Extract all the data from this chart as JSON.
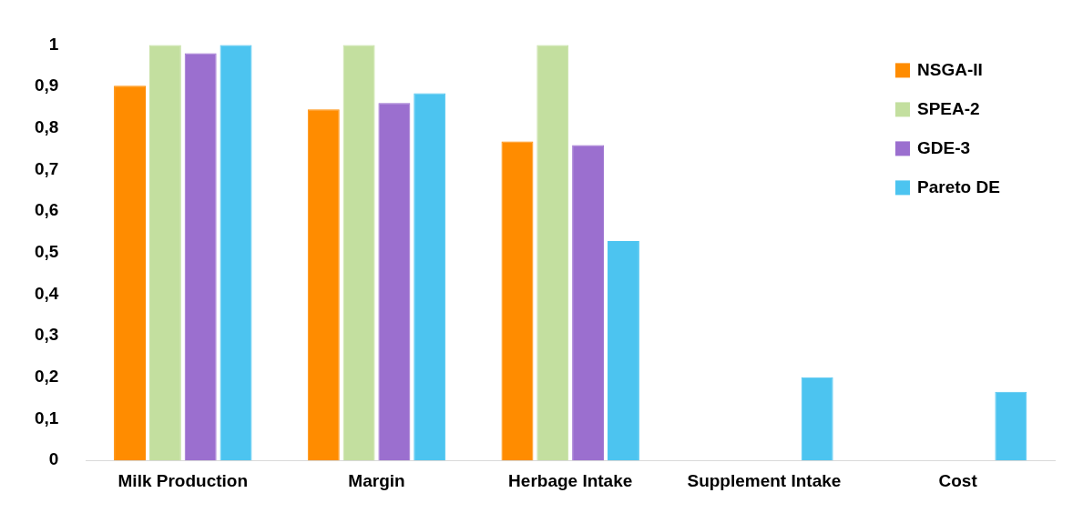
{
  "chart_data": {
    "type": "bar",
    "categories": [
      "Milk Production",
      "Margin",
      "Herbage Intake",
      "Supplement Intake",
      "Cost"
    ],
    "series": [
      {
        "name": "NSGA-II",
        "color": "#ff8c00",
        "values": [
          0.902,
          0.845,
          0.768,
          0,
          0
        ]
      },
      {
        "name": "SPEA-2",
        "color": "#c3df9f",
        "values": [
          1,
          1,
          1,
          0,
          0
        ]
      },
      {
        "name": "GDE-3",
        "color": "#9b6fcf",
        "values": [
          0.98,
          0.86,
          0.759,
          0,
          0
        ]
      },
      {
        "name": "Pareto DE",
        "color": "#4cc4f0",
        "values": [
          1,
          0.884,
          0.528,
          0.2,
          0.165
        ]
      }
    ],
    "ylim": [
      0,
      1
    ],
    "yticks": [
      0,
      {
        "value": 0.1,
        "label": "0,1"
      },
      {
        "value": 0.2,
        "label": "0,2"
      },
      {
        "value": 0.3,
        "label": "0,3"
      },
      {
        "value": 0.4,
        "label": "0,4"
      },
      {
        "value": 0.5,
        "label": "0,5"
      },
      {
        "value": 0.6,
        "label": "0,6"
      },
      {
        "value": 0.7,
        "label": "0,7"
      },
      {
        "value": 0.8,
        "label": "0,8"
      },
      {
        "value": 0.9,
        "label": "0,9"
      },
      1
    ],
    "grid": false,
    "legend": "top right"
  }
}
